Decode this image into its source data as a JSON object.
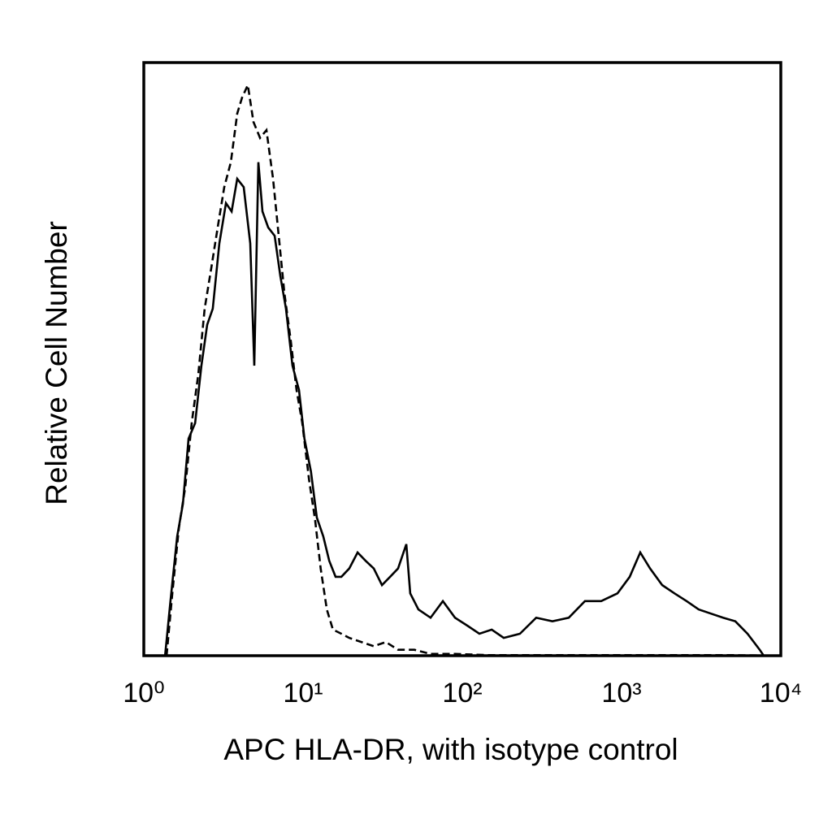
{
  "chart_data": {
    "type": "line",
    "x_label": "APC HLA-DR, with isotype control",
    "y_label": "Relative Cell Number",
    "x_scale": "log",
    "xlim": [
      1,
      10000
    ],
    "xticks": [
      {
        "value": 1,
        "label": "10⁰"
      },
      {
        "value": 10,
        "label": "10¹"
      },
      {
        "value": 100,
        "label": "10²"
      },
      {
        "value": 1000,
        "label": "10³"
      },
      {
        "value": 10000,
        "label": "10⁴"
      }
    ],
    "ylim": [
      0,
      100
    ],
    "grid": false,
    "series": [
      {
        "line_style": "solid",
        "color": "#000000",
        "x": [
          1.36,
          1.47,
          1.62,
          1.76,
          1.91,
          2.1,
          2.3,
          2.5,
          2.71,
          2.98,
          3.28,
          3.56,
          3.86,
          4.24,
          4.66,
          4.94,
          5.24,
          5.56,
          6.04,
          6.63,
          7.2,
          7.81,
          8.58,
          9.43,
          10.2,
          11.2,
          12.2,
          13.4,
          14.6,
          16.0,
          17.4,
          19.5,
          22.0,
          24.7,
          27.8,
          31.3,
          35.2,
          39.5,
          44.5,
          47.1,
          53.0,
          63.2,
          75.5,
          90.0,
          107,
          128,
          153,
          182,
          230,
          291,
          368,
          466,
          589,
          745,
          942,
          1125,
          1310,
          1510,
          1800,
          2150,
          2560,
          3050,
          3640,
          4340,
          5180,
          6180,
          7370,
          7810
        ],
        "values": [
          0,
          9.2,
          20.1,
          25.6,
          36.6,
          39.2,
          48.9,
          55.8,
          58.5,
          69.5,
          76.3,
          74.9,
          80.4,
          79.0,
          69.5,
          48.9,
          83.2,
          74.9,
          72.2,
          70.8,
          64.0,
          58.5,
          48.9,
          44.8,
          36.6,
          31.1,
          23.3,
          20.1,
          16.0,
          13.3,
          13.3,
          14.7,
          17.4,
          16.0,
          14.7,
          11.9,
          13.3,
          14.7,
          18.8,
          10.5,
          7.8,
          6.4,
          9.2,
          6.4,
          5.1,
          3.7,
          4.4,
          3.0,
          3.7,
          6.4,
          5.8,
          6.4,
          9.2,
          9.2,
          10.5,
          13.3,
          17.4,
          14.7,
          11.9,
          10.5,
          9.2,
          7.8,
          7.1,
          6.4,
          5.8,
          3.7,
          1.0,
          0
        ]
      },
      {
        "line_style": "dashed",
        "color": "#000000",
        "x": [
          1.39,
          1.51,
          1.66,
          1.82,
          2.0,
          2.2,
          2.41,
          2.65,
          2.91,
          3.2,
          3.52,
          3.86,
          4.14,
          4.5,
          4.88,
          5.37,
          5.89,
          6.48,
          7.11,
          7.63,
          8.38,
          9.1,
          9.88,
          10.9,
          11.9,
          12.9,
          14.1,
          15.4,
          17.4,
          19.5,
          23.3,
          27.8,
          33.1,
          39.5,
          50.0,
          63.2,
          90.0,
          144,
          466,
          1510,
          4890,
          8790
        ],
        "values": [
          0,
          10.5,
          21.5,
          28.4,
          39.3,
          47.5,
          58.5,
          65.3,
          72.2,
          79.0,
          83.2,
          91.4,
          94.1,
          96.2,
          90.0,
          87.3,
          88.6,
          80.4,
          69.5,
          61.2,
          53.0,
          44.8,
          39.3,
          29.7,
          22.9,
          14.7,
          7.8,
          4.4,
          3.7,
          3.0,
          2.3,
          1.6,
          2.3,
          1.0,
          1.0,
          0.3,
          0.3,
          0.1,
          0.1,
          0.1,
          0.1,
          0
        ]
      }
    ]
  }
}
